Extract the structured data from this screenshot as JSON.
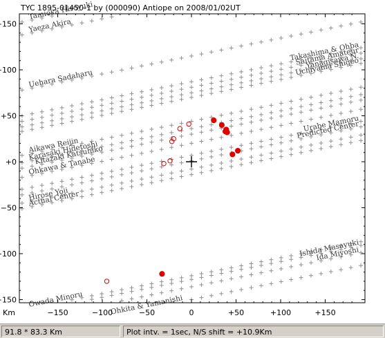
{
  "chart_data": {
    "type": "scatter",
    "title": "TYC 1895-01450-1 by (000090) Antiope on 2008/01/02UT",
    "xlabel": "Km",
    "ylabel": "",
    "xlim": [
      -190,
      190
    ],
    "ylim": [
      -155,
      155
    ],
    "x_ticks": [
      -150,
      -100,
      -50,
      0,
      50,
      100,
      150
    ],
    "x_tick_labels": [
      "−150",
      "−100",
      "−50",
      "0",
      "+50",
      "+100",
      "+150"
    ],
    "y_ticks": [
      150,
      100,
      50,
      0,
      -50,
      -100,
      -150
    ],
    "y_tick_labels": [
      "+150",
      "+100",
      "+50",
      "+0",
      "−50",
      "−100",
      "−150"
    ],
    "grid": false,
    "center_marker": {
      "x": 0,
      "y": 0
    },
    "chords": [
      {
        "label": "Tamioka Hiroyuki",
        "x": [
          -190,
          190
        ],
        "y": [
          152,
          226
        ]
      },
      {
        "label": "Yaeza Akira",
        "x": [
          -190,
          190
        ],
        "y": [
          138,
          212
        ]
      },
      {
        "label": "Uehara Sadaharu",
        "x": [
          -190,
          190
        ],
        "y": [
          78,
          152
        ]
      },
      {
        "label": "Takashima & Ohba",
        "x": [
          -190,
          190
        ],
        "y": [
          50,
          124
        ]
      },
      {
        "label": "Saitama Amateur",
        "x": [
          -190,
          190
        ],
        "y": [
          44,
          118
        ]
      },
      {
        "label": "Yanagisawa N.",
        "x": [
          -190,
          190
        ],
        "y": [
          38,
          112
        ]
      },
      {
        "label": "Uchiyama Shigeo",
        "x": [
          -190,
          190
        ],
        "y": [
          33,
          107
        ]
      },
      {
        "label": "Aikawa Reijin",
        "x": [
          -190,
          190
        ],
        "y": [
          7,
          81
        ]
      },
      {
        "label": "Karasaki Hidetoshi",
        "x": [
          -190,
          190
        ],
        "y": [
          -1,
          73
        ]
      },
      {
        "label": "Kitazaki Katsuhiko",
        "x": [
          -190,
          190
        ],
        "y": [
          -7,
          67
        ]
      },
      {
        "label": "Ohkawa & Tanabe",
        "x": [
          -190,
          190
        ],
        "y": [
          -17,
          57
        ]
      },
      {
        "label": "Urabe Mamoru",
        "x": [
          -190,
          190
        ],
        "y": [
          -30,
          44
        ]
      },
      {
        "label": "Predicted Center",
        "x": [
          -190,
          190
        ],
        "y": [
          -36,
          38
        ]
      },
      {
        "label": "Hirose Yoji",
        "x": [
          -190,
          190
        ],
        "y": [
          -45,
          29
        ]
      },
      {
        "label": "Actual Center",
        "x": [
          -190,
          190
        ],
        "y": [
          -51,
          23
        ]
      },
      {
        "label": "Ishida Masayuki",
        "x": [
          -190,
          190
        ],
        "y": [
          -165,
          -91
        ]
      },
      {
        "label": "Ida Miyoshi",
        "x": [
          -190,
          190
        ],
        "y": [
          -173,
          -99
        ]
      },
      {
        "label": "Owada Minoru",
        "x": [
          -190,
          190
        ],
        "y": [
          -161,
          -87
        ]
      },
      {
        "label": "Ohkita & Yamanishi",
        "x": [
          -190,
          190
        ],
        "y": [
          -187,
          -113
        ]
      }
    ],
    "events_filled": [
      {
        "x": 25,
        "y": 45
      },
      {
        "x": 34,
        "y": 40
      },
      {
        "x": 39,
        "y": 35
      },
      {
        "x": 40,
        "y": 32
      },
      {
        "x": 38,
        "y": 33
      },
      {
        "x": 52,
        "y": 12
      },
      {
        "x": 46,
        "y": 8
      },
      {
        "x": -33,
        "y": -122
      }
    ],
    "events_open": [
      {
        "x": -3,
        "y": 41
      },
      {
        "x": -13,
        "y": 36
      },
      {
        "x": -20,
        "y": 25
      },
      {
        "x": -22,
        "y": 22
      },
      {
        "x": -24,
        "y": 1
      },
      {
        "x": -31,
        "y": -2
      },
      {
        "x": -95,
        "y": -130
      }
    ]
  },
  "status": {
    "box_size": "91.8 * 83.3 Km",
    "plot_info": "Plot intv. = 1sec, N/S shift = +10.9Km"
  },
  "colors": {
    "chord_mark": "#909090",
    "event": "#e00000",
    "axis": "#000000"
  }
}
